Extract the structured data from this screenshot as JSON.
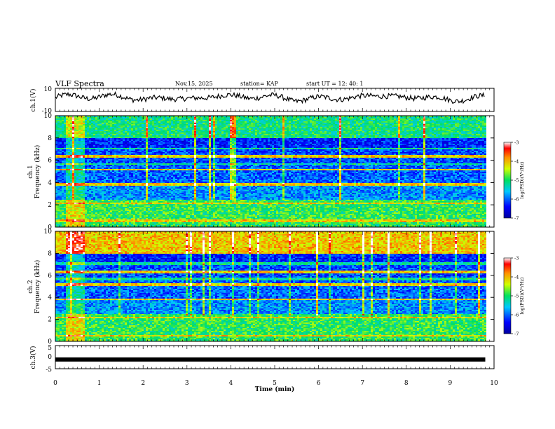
{
  "header": {
    "title": "VLF Spectra",
    "date": "Nov.15, 2025",
    "station": "station= KAP",
    "start_ut": "start  UT  =   12: 40: 1"
  },
  "chart_data": [
    {
      "type": "line",
      "name": "ch1-waveform",
      "ylabel": "ch.1(V)",
      "ylim": [
        -10,
        10
      ],
      "yticks": [
        "10",
        "-10"
      ],
      "series_description": "noisy waveform oscillating roughly between -3 and +7 V",
      "value_range": [
        -3,
        7
      ]
    },
    {
      "type": "heatmap",
      "name": "ch1-spectrogram",
      "ylabel": "ch.1\nFrequency (kHz)",
      "ylim": [
        0,
        10
      ],
      "yticks": [
        "0",
        "2",
        "4",
        "6",
        "8",
        "10"
      ],
      "xlim": [
        0,
        10
      ],
      "colorbar": {
        "label": "log(PSD)(V²/Hz)",
        "range": [
          -7,
          -3
        ],
        "ticks": [
          "-3",
          "-4",
          "-5",
          "-6",
          "-7"
        ]
      },
      "data_end_min": 9.8,
      "bright_burst_min": [
        0.2,
        0.65
      ]
    },
    {
      "type": "heatmap",
      "name": "ch2-spectrogram",
      "ylabel": "ch.2\nFrequency (kHz)",
      "ylim": [
        0,
        10
      ],
      "yticks": [
        "0",
        "2",
        "4",
        "6",
        "8",
        "10"
      ],
      "xlim": [
        0,
        10
      ],
      "colorbar": {
        "label": "log(PSD)(V²/Hz)",
        "range": [
          -7,
          -3
        ],
        "ticks": [
          "-3",
          "-4",
          "-5",
          "-6",
          "-7"
        ]
      },
      "data_end_min": 9.8,
      "bright_burst_min": [
        0.2,
        0.65
      ]
    },
    {
      "type": "line",
      "name": "ch3-waveform",
      "ylabel": "ch.3(V)",
      "ylim": [
        -5,
        5
      ],
      "yticks": [
        "5",
        "0",
        "-5"
      ],
      "series_description": "nearly constant thick band around -1 V",
      "value": -1,
      "xlabel": "Time  (min)",
      "xlim": [
        0,
        10
      ],
      "xticks": [
        "0",
        "1",
        "2",
        "3",
        "4",
        "5",
        "6",
        "7",
        "8",
        "9",
        "10"
      ]
    }
  ]
}
